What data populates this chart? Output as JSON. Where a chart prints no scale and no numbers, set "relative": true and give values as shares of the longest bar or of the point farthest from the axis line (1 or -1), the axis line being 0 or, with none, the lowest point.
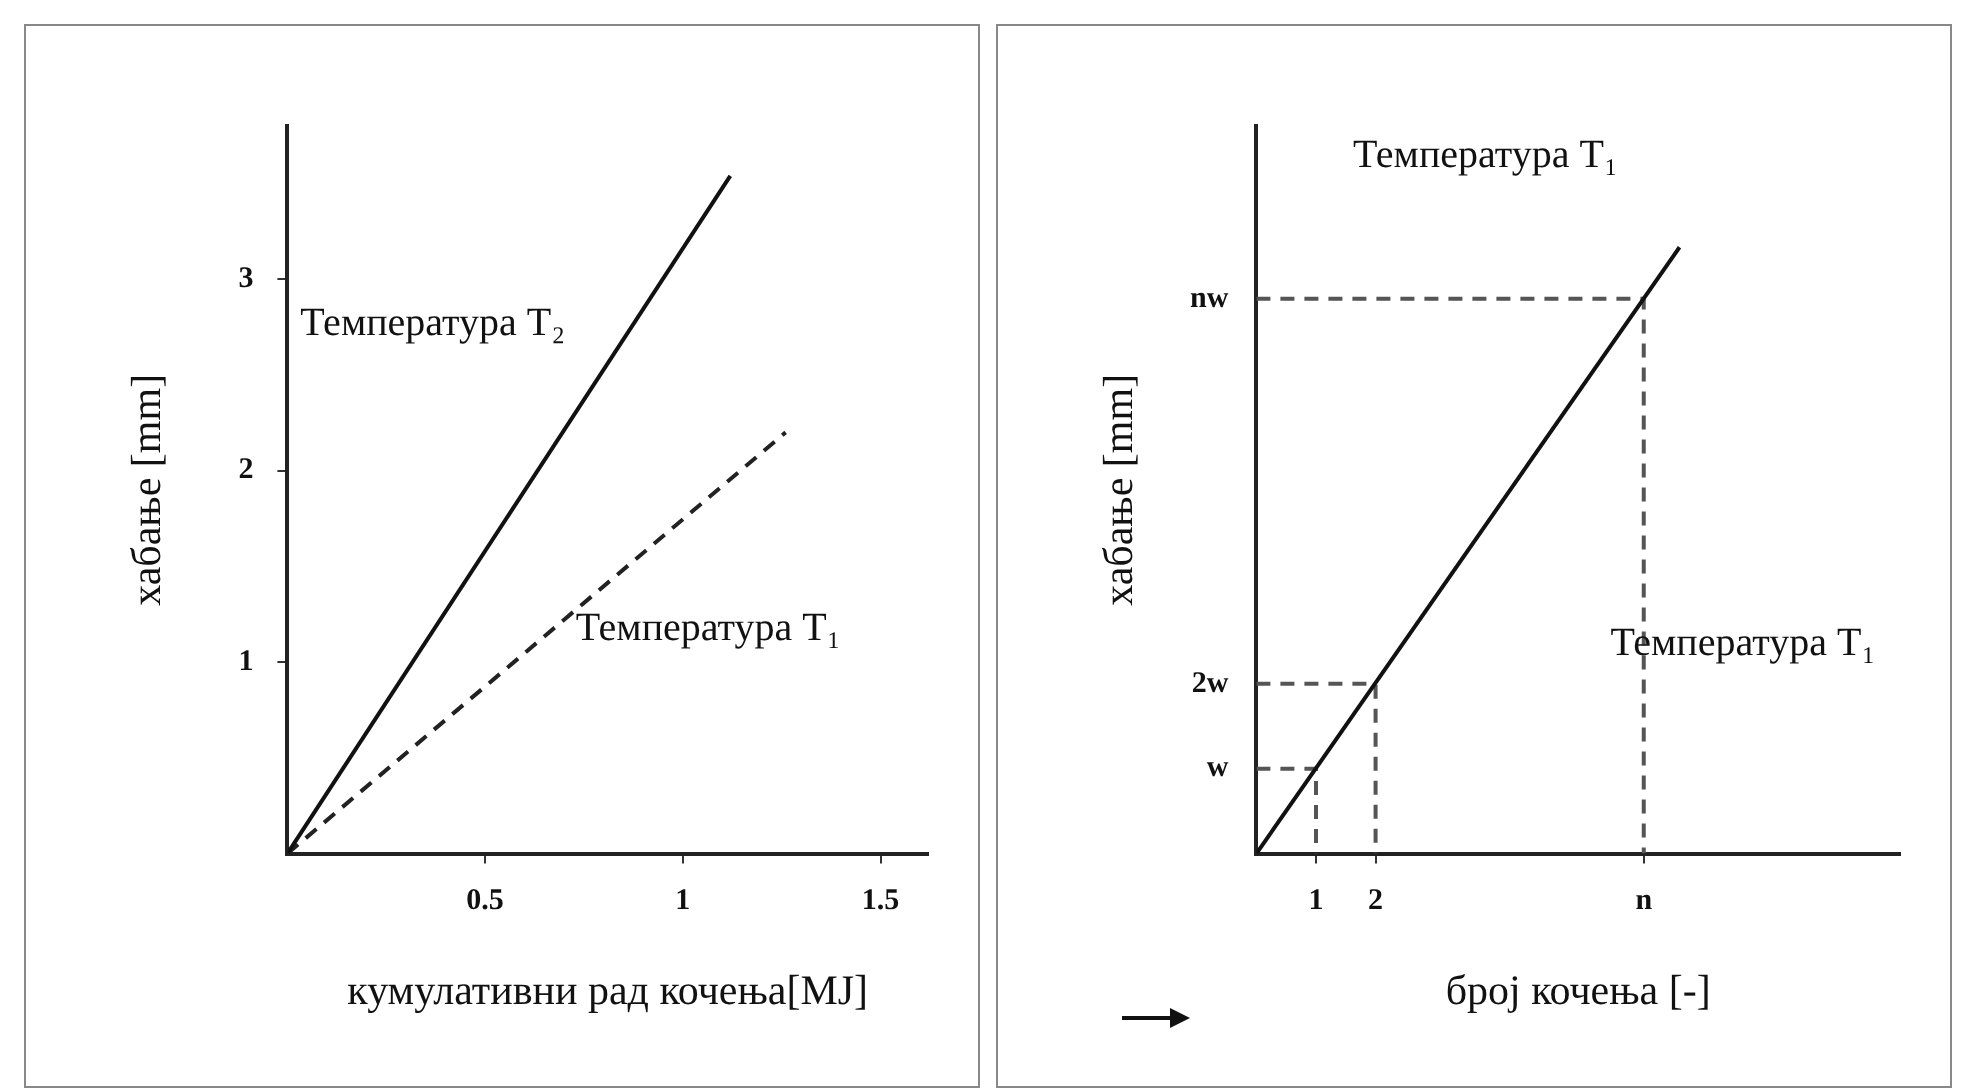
{
  "chart_data": [
    {
      "type": "line",
      "xlabel": "кумулативни рад кочења[MJ]",
      "ylabel": "хабање [mm]",
      "xlim": [
        0,
        1.62
      ],
      "ylim": [
        0,
        3.8
      ],
      "xticks": [
        0.5,
        1,
        1.5
      ],
      "yticks": [
        1,
        2,
        3
      ],
      "grid": false,
      "legend": false,
      "marker": "none",
      "series": [
        {
          "color": "#111111",
          "x": [
            0,
            1.12
          ],
          "values": [
            0,
            3.54
          ],
          "line_style": "solid"
        },
        {
          "color": "#222222",
          "x": [
            0,
            1.26
          ],
          "values": [
            0,
            2.2
          ],
          "line_style": "dashed"
        }
      ],
      "annotations": [
        "Температура T₂",
        "Температура T₁"
      ]
    },
    {
      "type": "line",
      "xlabel": "број кочења [-]",
      "ylabel": "хабање [mm]",
      "relative": true,
      "xlim": [
        0,
        10.8
      ],
      "xticks": [
        1,
        2,
        {
          "value": 6.5,
          "label": "n"
        }
      ],
      "grid": false,
      "legend": false,
      "marker": "none",
      "series": [
        {
          "color": "#111111",
          "x": [
            0,
            7.1
          ],
          "values": [
            0,
            1
          ],
          "line_style": "solid"
        },
        {
          "color": "#555555",
          "x": [
            0,
            1,
            1
          ],
          "values": [
            0.14,
            0.14,
            0
          ],
          "line_style": "dashed"
        },
        {
          "color": "#555555",
          "x": [
            0,
            2,
            2
          ],
          "values": [
            0.28,
            0.28,
            0
          ],
          "line_style": "dashed"
        },
        {
          "color": "#555555",
          "x": [
            0,
            6.5,
            6.5
          ],
          "values": [
            0.915,
            0.915,
            0
          ],
          "line_style": "dashed"
        }
      ],
      "annotations": [
        "Температура T₁",
        "Температура T₁",
        "w",
        "2w",
        "nw"
      ]
    }
  ]
}
